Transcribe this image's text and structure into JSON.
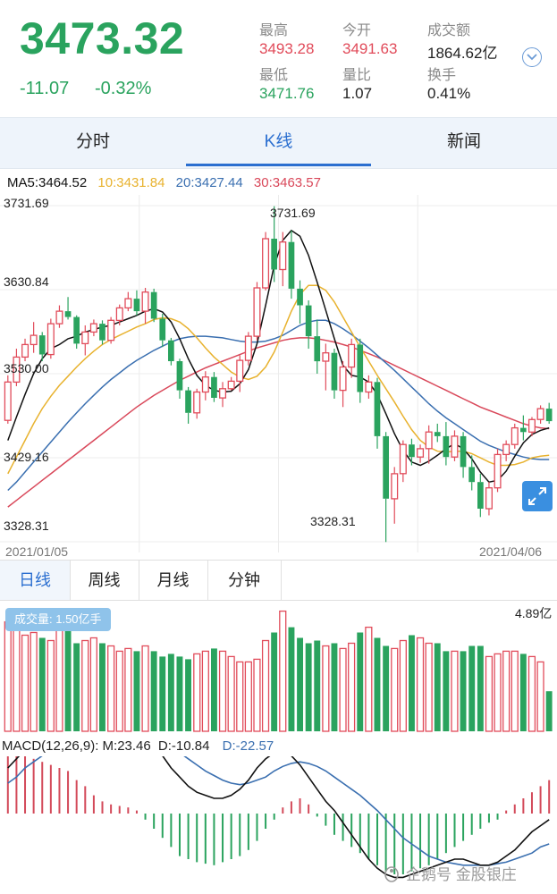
{
  "quote": {
    "price": "3473.32",
    "change": "-11.07",
    "change_pct": "-0.32%",
    "stats": [
      {
        "label": "最高",
        "value": "3493.28",
        "color": "red"
      },
      {
        "label": "今开",
        "value": "3491.63",
        "color": "red"
      },
      {
        "label": "成交额",
        "value": "1864.62亿",
        "color": "dark"
      },
      {
        "label": "最低",
        "value": "3471.76",
        "color": "green"
      },
      {
        "label": "量比",
        "value": "1.07",
        "color": "dark"
      },
      {
        "label": "换手",
        "value": "0.41%",
        "color": "dark"
      }
    ]
  },
  "tabs": [
    {
      "label": "分时",
      "active": false
    },
    {
      "label": "K线",
      "active": true
    },
    {
      "label": "新闻",
      "active": false
    }
  ],
  "ma_legend": {
    "ma5": "MA5:3464.52",
    "ma10": "10:3431.84",
    "ma20": "20:3427.44",
    "ma30": "30:3463.57"
  },
  "chart_data": {
    "type": "candlestick",
    "y_labels": [
      "3731.69",
      "3630.84",
      "3530.00",
      "3429.16",
      "3328.31"
    ],
    "ylim": [
      3328.31,
      3731.69
    ],
    "high_annotation": "3731.69",
    "low_annotation": "3328.31",
    "start_date": "2021/01/05",
    "end_date": "2021/04/06",
    "colors": {
      "up": "#e14b5a",
      "down": "#2aa35e",
      "ma5": "#111111",
      "ma10": "#e8b22e",
      "ma20": "#3a6fb0",
      "ma30": "#d9485a"
    },
    "candles": [
      [
        3474,
        3528,
        3470,
        3520
      ],
      [
        3520,
        3560,
        3515,
        3550
      ],
      [
        3550,
        3572,
        3545,
        3565
      ],
      [
        3565,
        3592,
        3555,
        3576
      ],
      [
        3576,
        3580,
        3545,
        3553
      ],
      [
        3553,
        3596,
        3548,
        3590
      ],
      [
        3590,
        3612,
        3585,
        3605
      ],
      [
        3605,
        3622,
        3595,
        3598
      ],
      [
        3598,
        3600,
        3560,
        3566
      ],
      [
        3566,
        3588,
        3552,
        3580
      ],
      [
        3580,
        3595,
        3575,
        3590
      ],
      [
        3590,
        3594,
        3565,
        3570
      ],
      [
        3570,
        3598,
        3566,
        3594
      ],
      [
        3594,
        3613,
        3588,
        3609
      ],
      [
        3609,
        3628,
        3605,
        3620
      ],
      [
        3620,
        3630,
        3600,
        3605
      ],
      [
        3605,
        3633,
        3590,
        3628
      ],
      [
        3628,
        3632,
        3592,
        3596
      ],
      [
        3596,
        3602,
        3562,
        3570
      ],
      [
        3570,
        3573,
        3540,
        3545
      ],
      [
        3545,
        3548,
        3500,
        3510
      ],
      [
        3510,
        3514,
        3470,
        3483
      ],
      [
        3483,
        3512,
        3476,
        3508
      ],
      [
        3508,
        3533,
        3498,
        3526
      ],
      [
        3526,
        3532,
        3496,
        3501
      ],
      [
        3501,
        3520,
        3490,
        3512
      ],
      [
        3512,
        3526,
        3510,
        3521
      ],
      [
        3521,
        3552,
        3508,
        3546
      ],
      [
        3546,
        3580,
        3540,
        3575
      ],
      [
        3575,
        3640,
        3570,
        3633
      ],
      [
        3633,
        3700,
        3630,
        3692
      ],
      [
        3692,
        3731,
        3640,
        3655
      ],
      [
        3655,
        3700,
        3635,
        3688
      ],
      [
        3688,
        3702,
        3620,
        3632
      ],
      [
        3632,
        3642,
        3590,
        3612
      ],
      [
        3612,
        3618,
        3560,
        3575
      ],
      [
        3575,
        3595,
        3530,
        3545
      ],
      [
        3545,
        3566,
        3510,
        3555
      ],
      [
        3555,
        3560,
        3500,
        3510
      ],
      [
        3510,
        3545,
        3490,
        3538
      ],
      [
        3538,
        3572,
        3525,
        3565
      ],
      [
        3565,
        3572,
        3495,
        3508
      ],
      [
        3508,
        3528,
        3500,
        3520
      ],
      [
        3520,
        3525,
        3440,
        3455
      ],
      [
        3455,
        3460,
        3328,
        3380
      ],
      [
        3380,
        3418,
        3350,
        3410
      ],
      [
        3410,
        3450,
        3400,
        3445
      ],
      [
        3445,
        3452,
        3420,
        3430
      ],
      [
        3430,
        3445,
        3423,
        3440
      ],
      [
        3440,
        3468,
        3422,
        3460
      ],
      [
        3460,
        3470,
        3448,
        3455
      ],
      [
        3455,
        3472,
        3420,
        3430
      ],
      [
        3430,
        3462,
        3425,
        3455
      ],
      [
        3455,
        3460,
        3405,
        3418
      ],
      [
        3418,
        3432,
        3390,
        3400
      ],
      [
        3400,
        3410,
        3358,
        3368
      ],
      [
        3368,
        3400,
        3360,
        3393
      ],
      [
        3393,
        3440,
        3388,
        3433
      ],
      [
        3433,
        3450,
        3425,
        3445
      ],
      [
        3445,
        3470,
        3440,
        3465
      ],
      [
        3465,
        3480,
        3450,
        3460
      ],
      [
        3460,
        3478,
        3455,
        3475
      ],
      [
        3475,
        3492,
        3470,
        3488
      ],
      [
        3488,
        3495,
        3470,
        3473
      ]
    ],
    "ma5": [
      3450,
      3478,
      3505,
      3530,
      3548,
      3560,
      3565,
      3572,
      3575,
      3580,
      3583,
      3586,
      3588,
      3592,
      3596,
      3600,
      3605,
      3608,
      3604,
      3592,
      3572,
      3548,
      3528,
      3516,
      3510,
      3508,
      3509,
      3518,
      3535,
      3566,
      3612,
      3660,
      3690,
      3702,
      3695,
      3672,
      3640,
      3606,
      3572,
      3540,
      3528,
      3526,
      3520,
      3505,
      3482,
      3458,
      3438,
      3424,
      3420,
      3425,
      3432,
      3440,
      3446,
      3440,
      3428,
      3412,
      3400,
      3402,
      3413,
      3431,
      3447,
      3457,
      3462,
      3465
    ],
    "ma10": [
      3410,
      3430,
      3450,
      3470,
      3488,
      3503,
      3516,
      3527,
      3538,
      3548,
      3557,
      3565,
      3571,
      3576,
      3581,
      3586,
      3590,
      3595,
      3597,
      3596,
      3592,
      3584,
      3573,
      3561,
      3550,
      3541,
      3532,
      3526,
      3523,
      3527,
      3538,
      3556,
      3580,
      3605,
      3625,
      3636,
      3636,
      3630,
      3616,
      3598,
      3580,
      3562,
      3545,
      3528,
      3512,
      3496,
      3479,
      3463,
      3450,
      3442,
      3437,
      3436,
      3437,
      3437,
      3434,
      3429,
      3424,
      3420,
      3420,
      3421,
      3424,
      3429,
      3431,
      3432
    ],
    "ma20": [
      3390,
      3400,
      3412,
      3424,
      3436,
      3448,
      3460,
      3472,
      3483,
      3494,
      3504,
      3514,
      3523,
      3531,
      3539,
      3546,
      3552,
      3558,
      3563,
      3568,
      3572,
      3574,
      3575,
      3575,
      3574,
      3573,
      3571,
      3569,
      3568,
      3568,
      3569,
      3572,
      3576,
      3582,
      3588,
      3592,
      3594,
      3594,
      3590,
      3584,
      3577,
      3569,
      3561,
      3552,
      3543,
      3534,
      3524,
      3514,
      3504,
      3494,
      3485,
      3477,
      3470,
      3463,
      3456,
      3449,
      3444,
      3440,
      3436,
      3433,
      3430,
      3428,
      3427,
      3427
    ],
    "ma30": [
      3370,
      3378,
      3386,
      3394,
      3402,
      3410,
      3418,
      3426,
      3434,
      3442,
      3450,
      3458,
      3466,
      3474,
      3482,
      3490,
      3497,
      3504,
      3510,
      3516,
      3522,
      3527,
      3532,
      3537,
      3541,
      3545,
      3549,
      3553,
      3557,
      3561,
      3564,
      3567,
      3570,
      3572,
      3573,
      3573,
      3572,
      3570,
      3568,
      3565,
      3562,
      3558,
      3554,
      3550,
      3545,
      3540,
      3535,
      3530,
      3525,
      3520,
      3515,
      3510,
      3505,
      3500,
      3495,
      3490,
      3486,
      3482,
      3478,
      3474,
      3470,
      3467,
      3465,
      3464
    ]
  },
  "period_tabs": [
    {
      "label": "日线",
      "active": true
    },
    {
      "label": "周线",
      "active": false
    },
    {
      "label": "月线",
      "active": false
    },
    {
      "label": "分钟",
      "active": false
    }
  ],
  "volume": {
    "badge": "成交量: 1.50亿手",
    "max_label": "4.89亿",
    "max": 4.89,
    "values": [
      4.1,
      4.0,
      3.6,
      3.7,
      3.5,
      3.4,
      3.9,
      3.8,
      3.3,
      3.4,
      3.5,
      3.3,
      3.2,
      3.0,
      3.1,
      3.0,
      3.2,
      3.0,
      2.8,
      2.9,
      2.8,
      2.7,
      2.9,
      3.0,
      3.1,
      3.0,
      2.8,
      2.6,
      2.6,
      2.7,
      3.4,
      3.7,
      4.5,
      3.9,
      3.5,
      3.3,
      3.4,
      3.2,
      3.3,
      3.1,
      3.3,
      3.7,
      3.9,
      3.5,
      3.2,
      3.1,
      3.4,
      3.6,
      3.5,
      3.3,
      3.3,
      3.0,
      3.0,
      3.0,
      3.2,
      3.2,
      2.8,
      2.9,
      3.0,
      3.0,
      2.9,
      2.8,
      2.6,
      1.5
    ]
  },
  "macd": {
    "legend_prefix": "MACD(12,26,9): ",
    "m": "M:23.46",
    "d": "D:-10.84",
    "dd": "D:-22.57",
    "colors": {
      "up": "#d34a5a",
      "down": "#2aa35e",
      "dif": "#111111",
      "dea": "#3a6fb0"
    },
    "hist": [
      40,
      42,
      38,
      36,
      34,
      32,
      30,
      28,
      22,
      18,
      12,
      8,
      6,
      5,
      4,
      2,
      -4,
      -10,
      -16,
      -22,
      -28,
      -30,
      -32,
      -33,
      -34,
      -32,
      -30,
      -28,
      -24,
      -18,
      -10,
      -4,
      4,
      8,
      10,
      6,
      -2,
      -8,
      -14,
      -18,
      -22,
      -26,
      -30,
      -34,
      -38,
      -40,
      -40,
      -38,
      -36,
      -34,
      -30,
      -26,
      -22,
      -18,
      -14,
      -10,
      -6,
      -4,
      2,
      6,
      10,
      14,
      18,
      22
    ],
    "dif": [
      30,
      36,
      42,
      46,
      48,
      50,
      52,
      53,
      54,
      55,
      55,
      55,
      55,
      54,
      54,
      53,
      50,
      44,
      38,
      30,
      24,
      18,
      14,
      12,
      10,
      10,
      12,
      16,
      22,
      30,
      36,
      40,
      42,
      38,
      32,
      24,
      16,
      8,
      2,
      -6,
      -14,
      -22,
      -30,
      -36,
      -40,
      -42,
      -42,
      -40,
      -38,
      -36,
      -34,
      -32,
      -30,
      -30,
      -32,
      -34,
      -34,
      -32,
      -28,
      -24,
      -18,
      -12,
      -8,
      -4
    ],
    "dea": [
      20,
      24,
      30,
      34,
      38,
      42,
      44,
      46,
      48,
      50,
      51,
      52,
      52,
      53,
      53,
      53,
      52,
      50,
      48,
      44,
      40,
      36,
      32,
      28,
      25,
      22,
      20,
      19,
      20,
      22,
      24,
      28,
      31,
      33,
      34,
      33,
      31,
      28,
      24,
      20,
      16,
      12,
      7,
      2,
      -4,
      -10,
      -16,
      -20,
      -24,
      -28,
      -30,
      -32,
      -33,
      -34,
      -34,
      -34,
      -34,
      -33,
      -32,
      -30,
      -28,
      -26,
      -22,
      -20
    ]
  },
  "watermark": "企鹅号 金股银庄"
}
